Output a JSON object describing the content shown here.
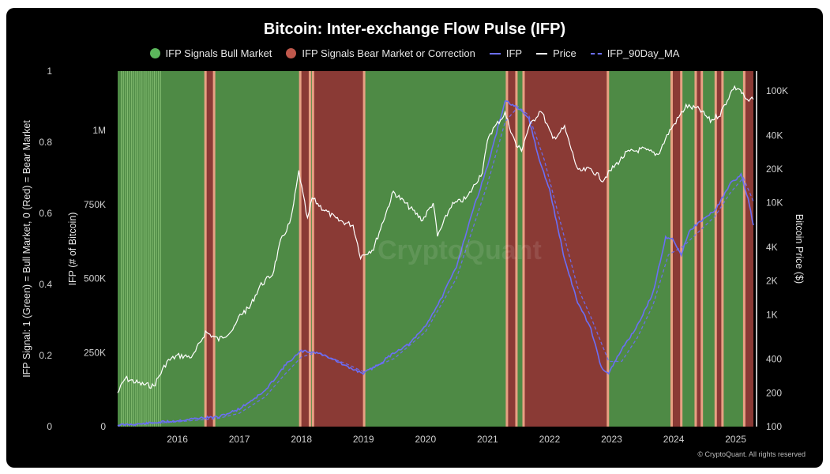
{
  "chart_data": {
    "type": "line",
    "title": "Bitcoin: Inter-exchange Flow Pulse (IFP)",
    "legend": [
      {
        "label": "IFP Signals Bull Market",
        "symbol": "dot",
        "color": "#5cb85c"
      },
      {
        "label": "IFP Signals Bear Market or Correction",
        "symbol": "dot",
        "color": "#c0584c"
      },
      {
        "label": "IFP",
        "symbol": "line",
        "color": "#6b6ef5"
      },
      {
        "label": "Price",
        "symbol": "line",
        "color": "#ffffff"
      },
      {
        "label": "IFP_90Day_MA",
        "symbol": "dashed",
        "color": "#6b6ef5"
      }
    ],
    "legend_position": "top-center",
    "x_range": [
      "2015-01-15",
      "2025-04-15"
    ],
    "x_ticks": [
      "2016",
      "2017",
      "2018",
      "2019",
      "2020",
      "2021",
      "2022",
      "2023",
      "2024",
      "2025"
    ],
    "y_signal": {
      "label": "IFP Signal: 1 (Green) = Bull Market, 0 (Red) = Bear Market",
      "range": [
        0,
        1
      ],
      "ticks": [
        "0",
        "0.2",
        "0.4",
        "0.6",
        "0.8",
        "1"
      ]
    },
    "y_ifp": {
      "label": "IFP (# of Bitcoin)",
      "range": [
        0,
        1200000
      ],
      "ticks": [
        "0",
        "250K",
        "500K",
        "750K",
        "1M"
      ]
    },
    "y_price": {
      "label": "Bitcoin Price ($)",
      "scale": "log",
      "range": [
        100,
        150000
      ],
      "ticks": [
        "100",
        "200",
        "400",
        "1K",
        "2K",
        "4K",
        "10K",
        "20K",
        "40K",
        "100K"
      ]
    },
    "grid": false,
    "signal_periods": [
      {
        "start": "2015-01-15",
        "end": "2016-06-15",
        "signal": 1
      },
      {
        "start": "2016-06-15",
        "end": "2016-08-05",
        "signal": 0
      },
      {
        "start": "2016-08-05",
        "end": "2017-12-25",
        "signal": 1
      },
      {
        "start": "2017-12-25",
        "end": "2018-02-20",
        "signal": 0
      },
      {
        "start": "2018-02-20",
        "end": "2018-03-10",
        "signal": 1
      },
      {
        "start": "2018-03-10",
        "end": "2019-01-05",
        "signal": 0
      },
      {
        "start": "2019-01-05",
        "end": "2021-04-25",
        "signal": 1
      },
      {
        "start": "2021-04-25",
        "end": "2021-06-20",
        "signal": 0
      },
      {
        "start": "2021-06-20",
        "end": "2021-08-01",
        "signal": 1
      },
      {
        "start": "2021-08-01",
        "end": "2022-12-10",
        "signal": 0
      },
      {
        "start": "2022-12-10",
        "end": "2023-12-20",
        "signal": 1
      },
      {
        "start": "2023-12-20",
        "end": "2024-02-15",
        "signal": 0
      },
      {
        "start": "2024-02-15",
        "end": "2024-05-10",
        "signal": 1
      },
      {
        "start": "2024-05-10",
        "end": "2024-06-15",
        "signal": 0
      },
      {
        "start": "2024-06-15",
        "end": "2024-09-05",
        "signal": 1
      },
      {
        "start": "2024-09-05",
        "end": "2024-10-15",
        "signal": 0
      },
      {
        "start": "2024-10-15",
        "end": "2025-02-20",
        "signal": 1
      },
      {
        "start": "2025-02-20",
        "end": "2025-04-15",
        "signal": 0
      }
    ],
    "series": [
      {
        "name": "IFP",
        "points": [
          [
            "2015-01-15",
            5000
          ],
          [
            "2015-06-01",
            9000
          ],
          [
            "2016-01-01",
            20000
          ],
          [
            "2016-06-01",
            30000
          ],
          [
            "2016-09-01",
            32000
          ],
          [
            "2017-01-01",
            60000
          ],
          [
            "2017-06-01",
            120000
          ],
          [
            "2017-10-01",
            210000
          ],
          [
            "2018-01-01",
            255000
          ],
          [
            "2018-04-01",
            250000
          ],
          [
            "2018-07-01",
            230000
          ],
          [
            "2018-10-01",
            200000
          ],
          [
            "2019-01-01",
            180000
          ],
          [
            "2019-04-01",
            210000
          ],
          [
            "2019-07-01",
            250000
          ],
          [
            "2019-10-01",
            280000
          ],
          [
            "2020-01-01",
            340000
          ],
          [
            "2020-04-01",
            430000
          ],
          [
            "2020-07-01",
            540000
          ],
          [
            "2020-10-01",
            720000
          ],
          [
            "2021-01-01",
            880000
          ],
          [
            "2021-04-15",
            1100000
          ],
          [
            "2021-06-15",
            1080000
          ],
          [
            "2021-09-01",
            1040000
          ],
          [
            "2021-11-01",
            900000
          ],
          [
            "2022-01-01",
            800000
          ],
          [
            "2022-04-01",
            560000
          ],
          [
            "2022-06-15",
            420000
          ],
          [
            "2022-09-01",
            330000
          ],
          [
            "2022-11-01",
            200000
          ],
          [
            "2022-12-15",
            180000
          ],
          [
            "2023-03-01",
            260000
          ],
          [
            "2023-06-01",
            340000
          ],
          [
            "2023-09-01",
            450000
          ],
          [
            "2023-11-15",
            640000
          ],
          [
            "2024-01-01",
            630000
          ],
          [
            "2024-02-15",
            580000
          ],
          [
            "2024-04-01",
            660000
          ],
          [
            "2024-06-01",
            690000
          ],
          [
            "2024-09-01",
            730000
          ],
          [
            "2024-12-01",
            820000
          ],
          [
            "2025-02-01",
            850000
          ],
          [
            "2025-03-15",
            770000
          ],
          [
            "2025-04-15",
            680000
          ]
        ]
      },
      {
        "name": "IFP_90Day_MA",
        "points": [
          [
            "2015-01-15",
            4000
          ],
          [
            "2016-01-01",
            16000
          ],
          [
            "2016-09-01",
            28000
          ],
          [
            "2017-01-01",
            45000
          ],
          [
            "2017-06-01",
            100000
          ],
          [
            "2017-10-01",
            180000
          ],
          [
            "2018-01-01",
            235000
          ],
          [
            "2018-04-01",
            250000
          ],
          [
            "2018-10-01",
            210000
          ],
          [
            "2019-01-01",
            185000
          ],
          [
            "2019-07-01",
            230000
          ],
          [
            "2020-01-01",
            320000
          ],
          [
            "2020-07-01",
            500000
          ],
          [
            "2020-10-01",
            660000
          ],
          [
            "2021-01-01",
            820000
          ],
          [
            "2021-04-15",
            1030000
          ],
          [
            "2021-07-01",
            1080000
          ],
          [
            "2021-09-01",
            1050000
          ],
          [
            "2021-12-01",
            900000
          ],
          [
            "2022-03-01",
            700000
          ],
          [
            "2022-06-15",
            470000
          ],
          [
            "2022-09-01",
            370000
          ],
          [
            "2022-12-15",
            220000
          ],
          [
            "2023-03-01",
            220000
          ],
          [
            "2023-06-01",
            300000
          ],
          [
            "2023-09-01",
            410000
          ],
          [
            "2023-12-01",
            580000
          ],
          [
            "2024-03-01",
            610000
          ],
          [
            "2024-06-01",
            660000
          ],
          [
            "2024-09-01",
            710000
          ],
          [
            "2024-12-01",
            790000
          ],
          [
            "2025-02-15",
            840000
          ],
          [
            "2025-04-15",
            760000
          ]
        ]
      },
      {
        "name": "Price",
        "points": [
          [
            "2015-01-15",
            200
          ],
          [
            "2015-03-01",
            270
          ],
          [
            "2015-06-01",
            240
          ],
          [
            "2015-08-15",
            230
          ],
          [
            "2015-11-01",
            380
          ],
          [
            "2016-01-01",
            430
          ],
          [
            "2016-04-01",
            420
          ],
          [
            "2016-06-15",
            700
          ],
          [
            "2016-09-01",
            600
          ],
          [
            "2016-12-01",
            750
          ],
          [
            "2017-01-05",
            1000
          ],
          [
            "2017-03-01",
            1150
          ],
          [
            "2017-05-01",
            1800
          ],
          [
            "2017-07-15",
            2300
          ],
          [
            "2017-09-01",
            4500
          ],
          [
            "2017-11-01",
            7000
          ],
          [
            "2017-12-17",
            19000
          ],
          [
            "2018-02-06",
            7000
          ],
          [
            "2018-03-05",
            11000
          ],
          [
            "2018-05-01",
            9000
          ],
          [
            "2018-08-01",
            7000
          ],
          [
            "2018-11-01",
            6300
          ],
          [
            "2018-12-15",
            3300
          ],
          [
            "2019-03-01",
            3900
          ],
          [
            "2019-06-26",
            12500
          ],
          [
            "2019-09-01",
            10000
          ],
          [
            "2019-12-15",
            7000
          ],
          [
            "2020-02-15",
            10000
          ],
          [
            "2020-03-12",
            5000
          ],
          [
            "2020-06-01",
            9500
          ],
          [
            "2020-09-01",
            11000
          ],
          [
            "2020-12-01",
            19000
          ],
          [
            "2021-01-08",
            40000
          ],
          [
            "2021-04-14",
            63000
          ],
          [
            "2021-06-20",
            32000
          ],
          [
            "2021-07-20",
            30000
          ],
          [
            "2021-09-01",
            47000
          ],
          [
            "2021-11-10",
            68000
          ],
          [
            "2022-01-20",
            37000
          ],
          [
            "2022-03-30",
            47000
          ],
          [
            "2022-06-18",
            19000
          ],
          [
            "2022-09-01",
            20000
          ],
          [
            "2022-11-10",
            16000
          ],
          [
            "2023-01-15",
            21000
          ],
          [
            "2023-04-01",
            28000
          ],
          [
            "2023-07-01",
            30000
          ],
          [
            "2023-10-01",
            27000
          ],
          [
            "2023-12-01",
            42000
          ],
          [
            "2024-03-14",
            73000
          ],
          [
            "2024-06-01",
            68000
          ],
          [
            "2024-08-05",
            54000
          ],
          [
            "2024-10-01",
            62000
          ],
          [
            "2024-12-17",
            106000
          ],
          [
            "2025-01-20",
            105000
          ],
          [
            "2025-03-10",
            80000
          ],
          [
            "2025-04-15",
            84000
          ]
        ]
      }
    ]
  },
  "colors": {
    "bull_region": "#4e8a45",
    "bull_region_early": "#6fbf5a",
    "bear_region": "#8a3a35",
    "transition_edge": "#e8a083",
    "ifp_line": "#6b6ef5",
    "price_line": "#ffffff"
  },
  "watermark": "CryptoQuant",
  "copyright": "© CryptoQuant. All rights reserved"
}
